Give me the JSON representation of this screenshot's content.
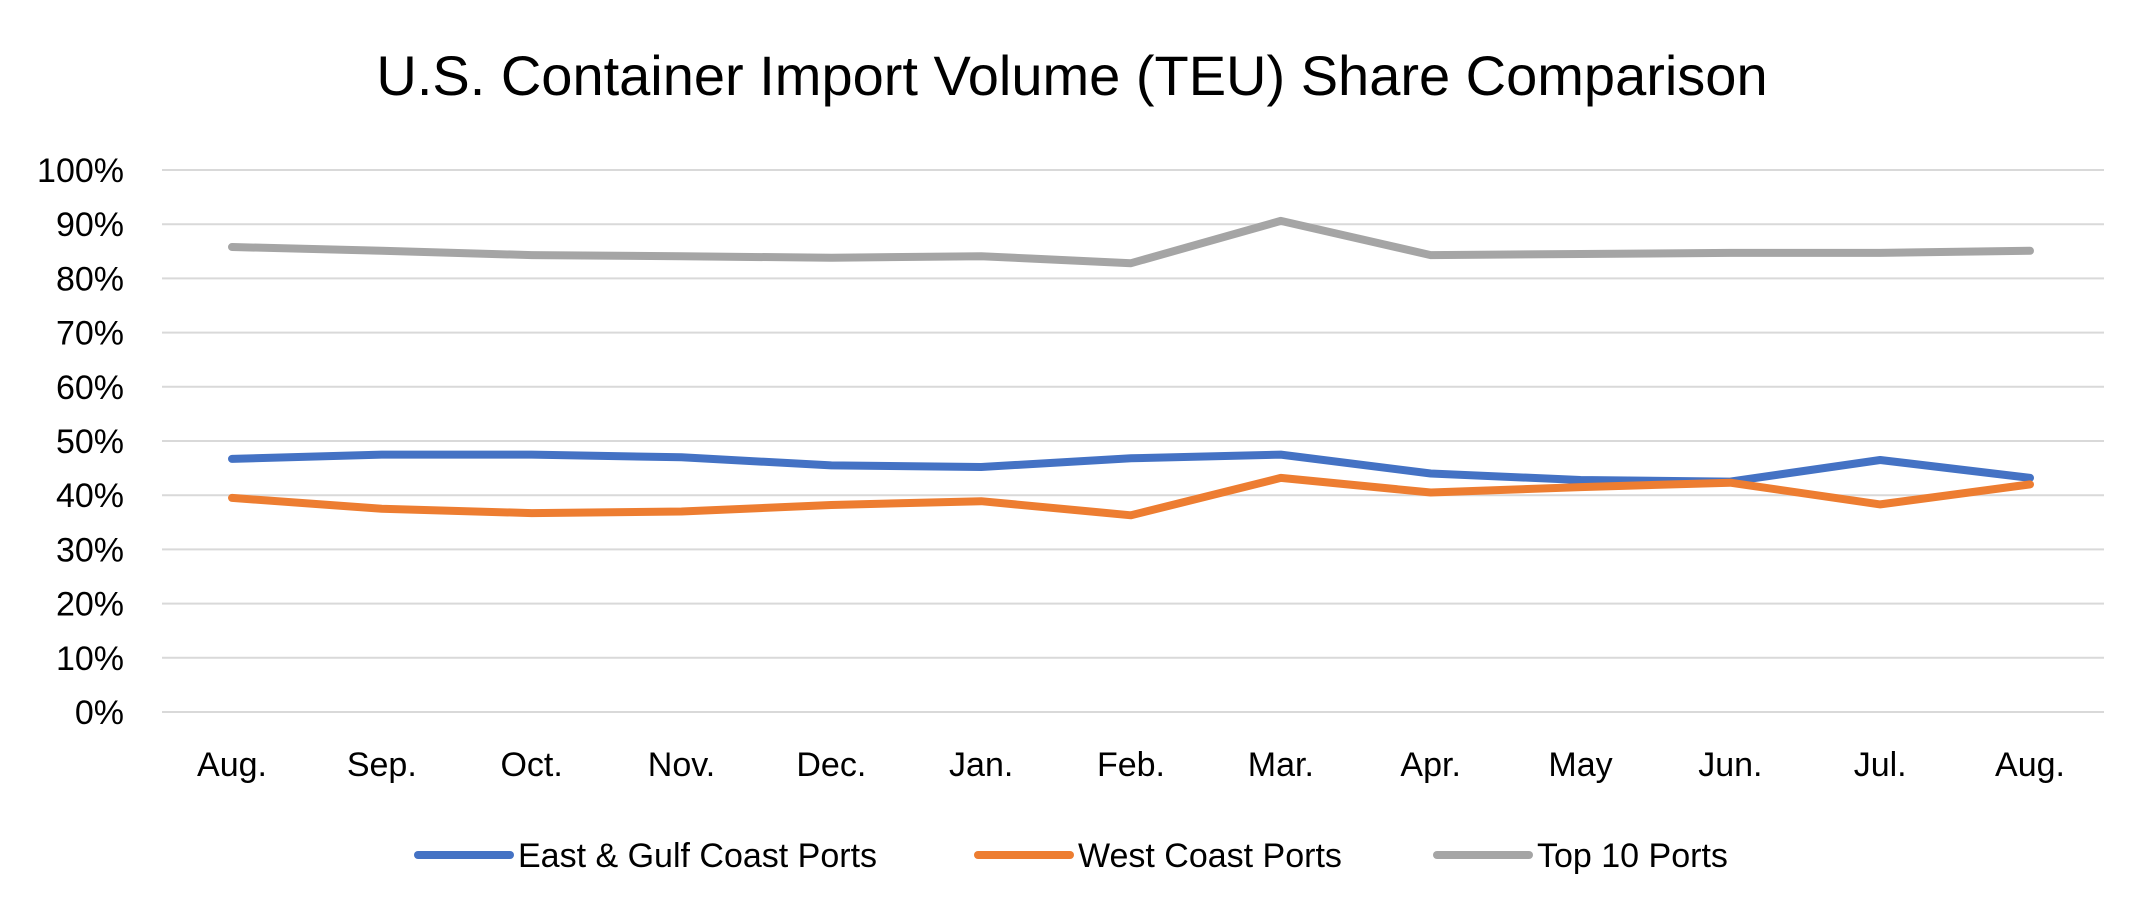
{
  "chart_data": {
    "type": "line",
    "title": "U.S. Container Import Volume (TEU) Share Comparison",
    "xlabel": "",
    "ylabel": "",
    "categories": [
      "Aug.",
      "Sep.",
      "Oct.",
      "Nov.",
      "Dec.",
      "Jan.",
      "Feb.",
      "Mar.",
      "Apr.",
      "May",
      "Jun.",
      "Jul.",
      "Aug."
    ],
    "ylim": [
      0,
      100
    ],
    "y_ticks": [
      0,
      10,
      20,
      30,
      40,
      50,
      60,
      70,
      80,
      90,
      100
    ],
    "y_tick_labels": [
      "0%",
      "10%",
      "20%",
      "30%",
      "40%",
      "50%",
      "60%",
      "70%",
      "80%",
      "90%",
      "100%"
    ],
    "grid": true,
    "legend_position": "bottom",
    "series": [
      {
        "name": "East & Gulf Coast Ports",
        "color": "#4472c4",
        "values": [
          46.7,
          47.5,
          47.5,
          47.0,
          45.5,
          45.2,
          46.8,
          47.5,
          44.0,
          42.8,
          42.5,
          46.5,
          43.2
        ]
      },
      {
        "name": "West Coast Ports",
        "color": "#ed7d31",
        "values": [
          39.5,
          37.5,
          36.7,
          37.0,
          38.2,
          38.9,
          36.3,
          43.2,
          40.5,
          41.5,
          42.3,
          38.3,
          42.0
        ]
      },
      {
        "name": "Top 10 Ports",
        "color": "#a5a5a5",
        "values": [
          85.8,
          85.1,
          84.3,
          84.1,
          83.8,
          84.1,
          82.8,
          90.6,
          84.3,
          84.5,
          84.7,
          84.7,
          85.1
        ]
      }
    ]
  }
}
